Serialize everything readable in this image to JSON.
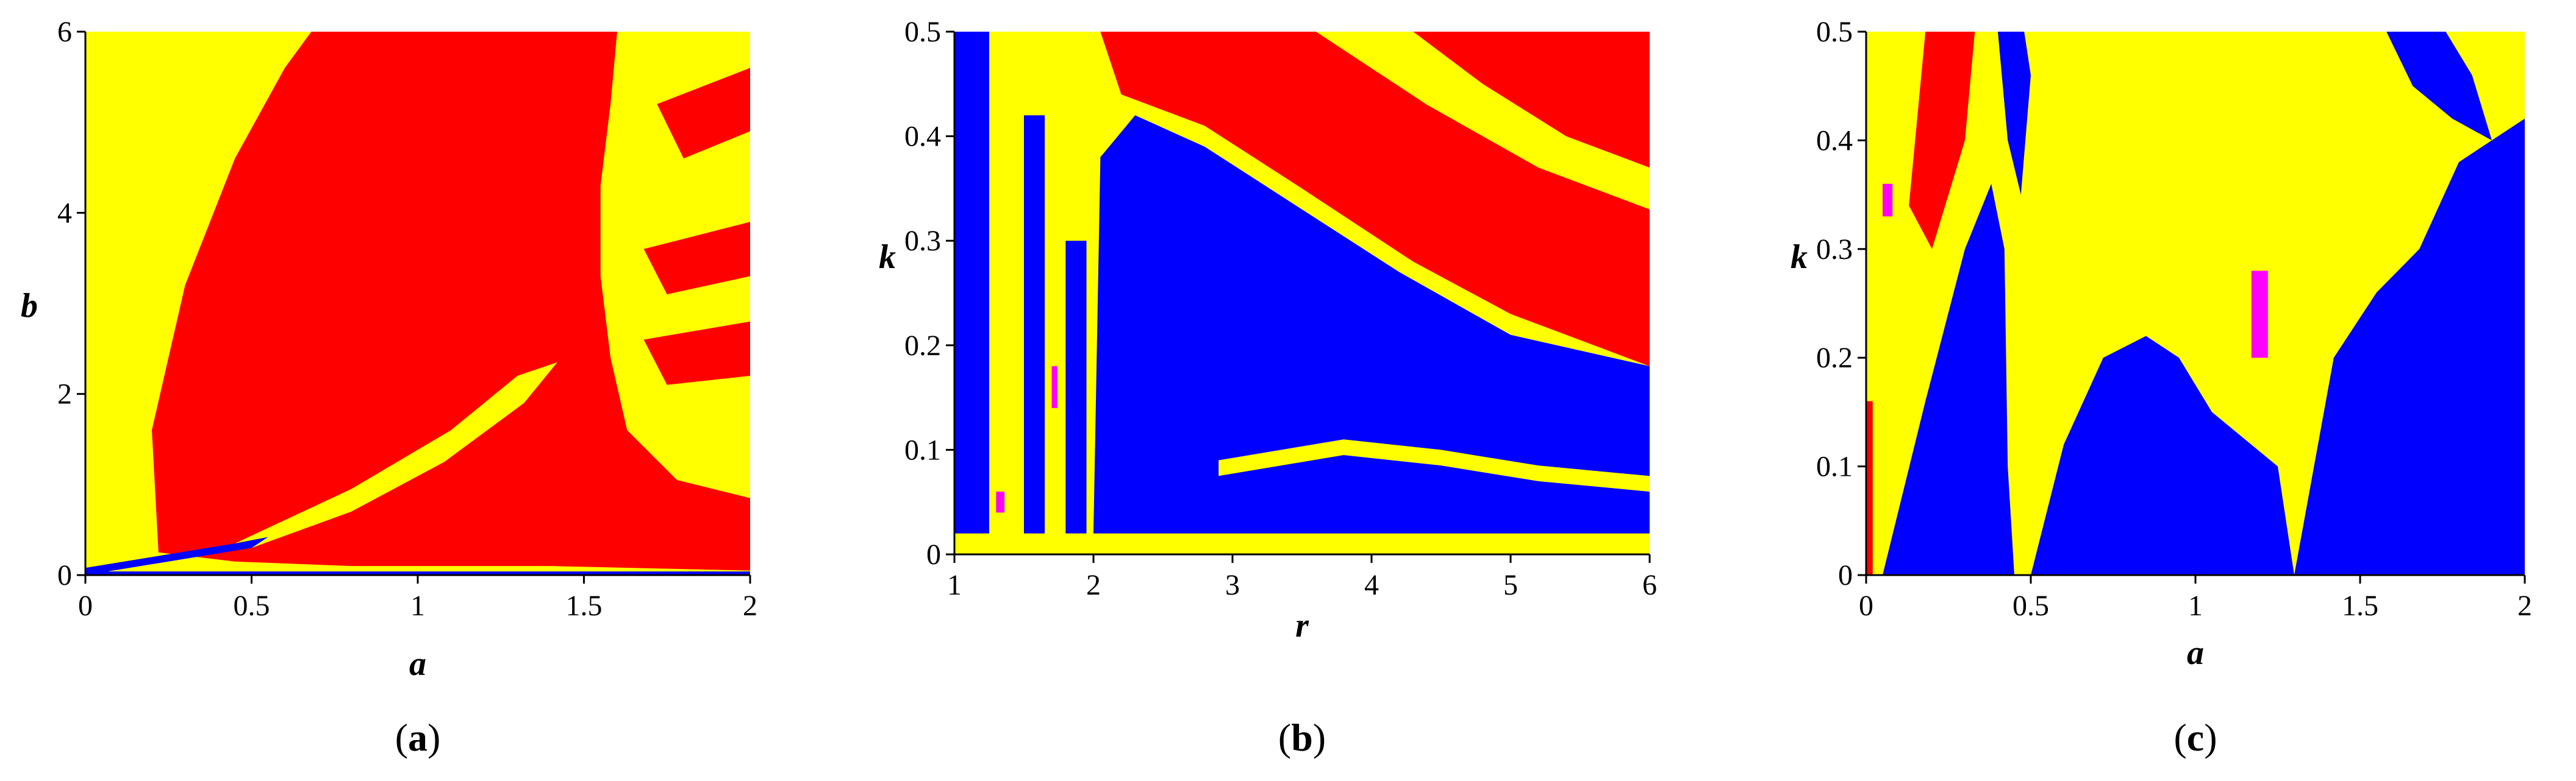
{
  "colors": {
    "yellow": "#ffff00",
    "red": "#ff0000",
    "blue": "#0000ff",
    "magenta": "#ff00ff",
    "axis": "#000000",
    "background": "#ffffff"
  },
  "chart_data": [
    {
      "type": "heatmap",
      "panel": "a",
      "caption_prefix": "(",
      "caption_letter": "a",
      "caption_suffix": ")",
      "xlabel": "a",
      "ylabel": "b",
      "xlim": [
        0,
        2
      ],
      "ylim": [
        0,
        6
      ],
      "xticks": [
        0,
        0.5,
        1,
        1.5,
        2
      ],
      "xtick_labels": [
        "0",
        "0.5",
        "1",
        "1.5",
        "2"
      ],
      "yticks": [
        0,
        2,
        4,
        6
      ],
      "ytick_labels": [
        "0",
        "2",
        "4",
        "6"
      ],
      "legend": "none",
      "regions": [
        {
          "color": "yellow",
          "role": "background",
          "description_points": [
            [
              0,
              0
            ],
            [
              2,
              0
            ],
            [
              2,
              6
            ],
            [
              0,
              6
            ]
          ]
        },
        {
          "color": "red",
          "points": [
            [
              0.22,
              0.25
            ],
            [
              0.2,
              1.6
            ],
            [
              0.3,
              3.2
            ],
            [
              0.45,
              4.6
            ],
            [
              0.6,
              5.6
            ],
            [
              0.68,
              6
            ],
            [
              1.6,
              6
            ],
            [
              1.58,
              5.2
            ],
            [
              1.55,
              4.3
            ],
            [
              1.55,
              3.3
            ],
            [
              1.58,
              2.4
            ],
            [
              1.63,
              1.6
            ],
            [
              1.78,
              1.05
            ],
            [
              2,
              0.85
            ],
            [
              2,
              0.05
            ],
            [
              1.4,
              0.1
            ],
            [
              0.8,
              0.1
            ],
            [
              0.45,
              0.15
            ]
          ]
        },
        {
          "color": "red",
          "points": [
            [
              1.72,
              5.2
            ],
            [
              2,
              5.6
            ],
            [
              2,
              4.9
            ],
            [
              1.8,
              4.6
            ]
          ]
        },
        {
          "color": "red",
          "points": [
            [
              1.68,
              3.6
            ],
            [
              2,
              3.9
            ],
            [
              2,
              3.3
            ],
            [
              1.75,
              3.1
            ]
          ]
        },
        {
          "color": "red",
          "points": [
            [
              1.68,
              2.6
            ],
            [
              2,
              2.8
            ],
            [
              2,
              2.2
            ],
            [
              1.75,
              2.1
            ]
          ]
        },
        {
          "color": "red",
          "points": [
            [
              0.45,
              0.2
            ],
            [
              1.05,
              0.8
            ],
            [
              1.35,
              1.2
            ],
            [
              1.55,
              1.4
            ],
            [
              1.5,
              1.0
            ],
            [
              1.0,
              0.5
            ],
            [
              0.55,
              0.15
            ]
          ]
        },
        {
          "color": "yellow",
          "points": [
            [
              0.45,
              0.35
            ],
            [
              0.8,
              0.95
            ],
            [
              1.1,
              1.6
            ],
            [
              1.3,
              2.2
            ],
            [
              1.42,
              2.35
            ],
            [
              1.32,
              1.9
            ],
            [
              1.08,
              1.25
            ],
            [
              0.8,
              0.7
            ],
            [
              0.5,
              0.3
            ]
          ]
        },
        {
          "color": "yellow",
          "points": [
            [
              0.05,
              4.3
            ],
            [
              0.1,
              5.4
            ],
            [
              0.3,
              5.9
            ],
            [
              0.45,
              6
            ],
            [
              0.33,
              5.0
            ],
            [
              0.22,
              4.0
            ],
            [
              0.12,
              3.4
            ]
          ]
        },
        {
          "color": "blue",
          "points": [
            [
              0.0,
              0.08
            ],
            [
              0.45,
              0.35
            ],
            [
              0.55,
              0.42
            ],
            [
              0.5,
              0.3
            ],
            [
              0.25,
              0.15
            ],
            [
              0.0,
              0.0
            ]
          ]
        },
        {
          "color": "blue",
          "points": [
            [
              0.0,
              0.0
            ],
            [
              2.0,
              0.0
            ],
            [
              2.0,
              0.04
            ],
            [
              0.0,
              0.04
            ]
          ]
        }
      ]
    },
    {
      "type": "heatmap",
      "panel": "b",
      "caption_prefix": "(",
      "caption_letter": "b",
      "caption_suffix": ")",
      "xlabel": "r",
      "ylabel": "k",
      "xlim": [
        1,
        6
      ],
      "ylim": [
        0,
        0.5
      ],
      "xticks": [
        1,
        2,
        3,
        4,
        5,
        6
      ],
      "xtick_labels": [
        "1",
        "2",
        "3",
        "4",
        "5",
        "6"
      ],
      "yticks": [
        0,
        0.1,
        0.2,
        0.3,
        0.4,
        0.5
      ],
      "ytick_labels": [
        "0",
        "0.1",
        "0.2",
        "0.3",
        "0.4",
        "0.5"
      ],
      "legend": "none",
      "regions": [
        {
          "color": "yellow",
          "role": "background",
          "description_points": [
            [
              1,
              0
            ],
            [
              6,
              0
            ],
            [
              6,
              0.5
            ],
            [
              1,
              0.5
            ]
          ]
        },
        {
          "color": "blue",
          "points": [
            [
              1.0,
              0.02
            ],
            [
              1.0,
              0.5
            ],
            [
              1.25,
              0.5
            ],
            [
              1.25,
              0.02
            ]
          ]
        },
        {
          "color": "blue",
          "points": [
            [
              1.5,
              0.02
            ],
            [
              1.5,
              0.42
            ],
            [
              1.65,
              0.42
            ],
            [
              1.65,
              0.02
            ]
          ]
        },
        {
          "color": "blue",
          "points": [
            [
              1.8,
              0.02
            ],
            [
              1.8,
              0.3
            ],
            [
              1.95,
              0.3
            ],
            [
              1.95,
              0.02
            ]
          ]
        },
        {
          "color": "blue",
          "points": [
            [
              2.0,
              0.02
            ],
            [
              2.05,
              0.38
            ],
            [
              2.3,
              0.42
            ],
            [
              2.8,
              0.39
            ],
            [
              3.5,
              0.33
            ],
            [
              4.2,
              0.27
            ],
            [
              5.0,
              0.21
            ],
            [
              6.0,
              0.18
            ],
            [
              6.0,
              0.02
            ]
          ]
        },
        {
          "color": "red",
          "points": [
            [
              2.05,
              0.5
            ],
            [
              2.2,
              0.44
            ],
            [
              2.8,
              0.41
            ],
            [
              3.5,
              0.35
            ],
            [
              4.3,
              0.28
            ],
            [
              5.0,
              0.23
            ],
            [
              5.6,
              0.2
            ],
            [
              6.0,
              0.18
            ],
            [
              6.0,
              0.5
            ]
          ]
        },
        {
          "color": "red",
          "points": [
            [
              4.0,
              0.5
            ],
            [
              4.6,
              0.43
            ],
            [
              5.3,
              0.38
            ],
            [
              6.0,
              0.35
            ],
            [
              6.0,
              0.5
            ]
          ]
        },
        {
          "color": "yellow",
          "points": [
            [
              3.6,
              0.5
            ],
            [
              4.4,
              0.43
            ],
            [
              5.2,
              0.37
            ],
            [
              6.0,
              0.33
            ],
            [
              6.0,
              0.37
            ],
            [
              5.4,
              0.4
            ],
            [
              4.8,
              0.45
            ],
            [
              4.3,
              0.5
            ]
          ]
        },
        {
          "color": "yellow",
          "points": [
            [
              4.5,
              0.1
            ],
            [
              5.2,
              0.085
            ],
            [
              6.0,
              0.075
            ],
            [
              6.0,
              0.06
            ],
            [
              5.2,
              0.07
            ],
            [
              4.5,
              0.085
            ]
          ]
        },
        {
          "color": "yellow",
          "points": [
            [
              2.9,
              0.09
            ],
            [
              3.8,
              0.11
            ],
            [
              4.5,
              0.1
            ],
            [
              4.5,
              0.085
            ],
            [
              3.8,
              0.095
            ],
            [
              2.9,
              0.075
            ]
          ]
        },
        {
          "color": "magenta",
          "points": [
            [
              1.3,
              0.04
            ],
            [
              1.3,
              0.06
            ],
            [
              1.36,
              0.06
            ],
            [
              1.36,
              0.04
            ]
          ]
        },
        {
          "color": "magenta",
          "points": [
            [
              1.7,
              0.14
            ],
            [
              1.7,
              0.18
            ],
            [
              1.74,
              0.18
            ],
            [
              1.74,
              0.14
            ]
          ]
        }
      ]
    },
    {
      "type": "heatmap",
      "panel": "c",
      "caption_prefix": "(",
      "caption_letter": "c",
      "caption_suffix": ")",
      "xlabel": "a",
      "ylabel": "k",
      "xlim": [
        0,
        2
      ],
      "ylim": [
        0,
        0.5
      ],
      "xticks": [
        0,
        0.5,
        1,
        1.5,
        2
      ],
      "xtick_labels": [
        "0",
        "0.5",
        "1",
        "1.5",
        "2"
      ],
      "yticks": [
        0,
        0.1,
        0.2,
        0.3,
        0.4,
        0.5
      ],
      "ytick_labels": [
        "0",
        "0.1",
        "0.2",
        "0.3",
        "0.4",
        "0.5"
      ],
      "legend": "none",
      "regions": [
        {
          "color": "yellow",
          "role": "background",
          "description_points": [
            [
              0,
              0
            ],
            [
              2,
              0
            ],
            [
              2,
              0.5
            ],
            [
              0,
              0.5
            ]
          ]
        },
        {
          "color": "blue",
          "points": [
            [
              0.05,
              0.0
            ],
            [
              0.18,
              0.16
            ],
            [
              0.3,
              0.3
            ],
            [
              0.38,
              0.36
            ],
            [
              0.42,
              0.3
            ],
            [
              0.43,
              0.1
            ],
            [
              0.45,
              0.0
            ]
          ]
        },
        {
          "color": "blue",
          "points": [
            [
              0.5,
              0.0
            ],
            [
              0.6,
              0.12
            ],
            [
              0.72,
              0.2
            ],
            [
              0.85,
              0.22
            ],
            [
              0.95,
              0.2
            ],
            [
              1.05,
              0.15
            ],
            [
              1.25,
              0.1
            ],
            [
              1.3,
              0.0
            ]
          ]
        },
        {
          "color": "blue",
          "points": [
            [
              1.3,
              0.0
            ],
            [
              1.42,
              0.2
            ],
            [
              1.55,
              0.26
            ],
            [
              1.68,
              0.3
            ],
            [
              1.8,
              0.38
            ],
            [
              2.0,
              0.42
            ],
            [
              2.0,
              0.0
            ]
          ]
        },
        {
          "color": "blue",
          "points": [
            [
              1.58,
              0.5
            ],
            [
              1.66,
              0.45
            ],
            [
              1.78,
              0.42
            ],
            [
              1.9,
              0.4
            ],
            [
              1.84,
              0.46
            ],
            [
              1.76,
              0.5
            ]
          ]
        },
        {
          "color": "blue",
          "points": [
            [
              0.4,
              0.5
            ],
            [
              0.43,
              0.4
            ],
            [
              0.47,
              0.35
            ],
            [
              0.5,
              0.46
            ],
            [
              0.48,
              0.5
            ]
          ]
        },
        {
          "color": "red",
          "points": [
            [
              0.13,
              0.34
            ],
            [
              0.18,
              0.5
            ],
            [
              0.33,
              0.5
            ],
            [
              0.3,
              0.4
            ],
            [
              0.2,
              0.3
            ]
          ]
        },
        {
          "color": "red",
          "points": [
            [
              0.0,
              0.0
            ],
            [
              0.0,
              0.16
            ],
            [
              0.02,
              0.16
            ],
            [
              0.02,
              0.0
            ]
          ]
        },
        {
          "color": "magenta",
          "points": [
            [
              1.17,
              0.2
            ],
            [
              1.17,
              0.28
            ],
            [
              1.22,
              0.28
            ],
            [
              1.22,
              0.2
            ]
          ]
        },
        {
          "color": "magenta",
          "points": [
            [
              0.05,
              0.33
            ],
            [
              0.05,
              0.36
            ],
            [
              0.08,
              0.36
            ],
            [
              0.08,
              0.33
            ]
          ]
        }
      ]
    }
  ]
}
